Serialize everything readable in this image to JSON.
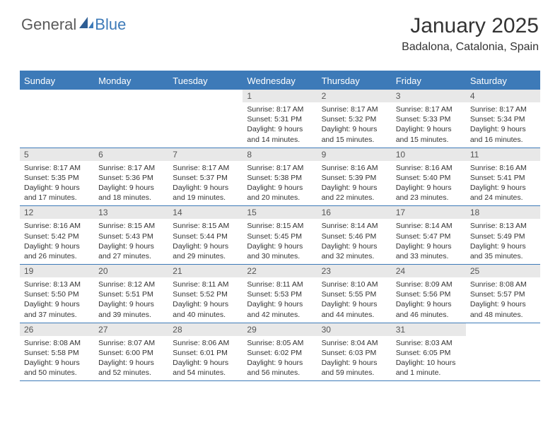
{
  "logo": {
    "word1": "General",
    "word2": "Blue"
  },
  "header": {
    "title": "January 2025",
    "subtitle": "Badalona, Catalonia, Spain"
  },
  "colors": {
    "accent": "#3d7ab8",
    "header_bg": "#3d7ab8",
    "header_text": "#ffffff",
    "daynum_bg": "#e8e8e8",
    "text": "#333333",
    "logo_gray": "#5a5a5a",
    "logo_blue": "#3d7ab8",
    "page_bg": "#ffffff"
  },
  "typography": {
    "title_fontsize": 30,
    "subtitle_fontsize": 16,
    "header_fontsize": 13,
    "daynum_fontsize": 12,
    "body_fontsize": 10.5,
    "font_family": "Arial"
  },
  "calendar": {
    "type": "table",
    "columns": [
      "Sunday",
      "Monday",
      "Tuesday",
      "Wednesday",
      "Thursday",
      "Friday",
      "Saturday"
    ],
    "weeks": [
      [
        {
          "n": "",
          "sr": "",
          "ss": "",
          "dl": ""
        },
        {
          "n": "",
          "sr": "",
          "ss": "",
          "dl": ""
        },
        {
          "n": "",
          "sr": "",
          "ss": "",
          "dl": ""
        },
        {
          "n": "1",
          "sr": "Sunrise: 8:17 AM",
          "ss": "Sunset: 5:31 PM",
          "dl": "Daylight: 9 hours and 14 minutes."
        },
        {
          "n": "2",
          "sr": "Sunrise: 8:17 AM",
          "ss": "Sunset: 5:32 PM",
          "dl": "Daylight: 9 hours and 15 minutes."
        },
        {
          "n": "3",
          "sr": "Sunrise: 8:17 AM",
          "ss": "Sunset: 5:33 PM",
          "dl": "Daylight: 9 hours and 15 minutes."
        },
        {
          "n": "4",
          "sr": "Sunrise: 8:17 AM",
          "ss": "Sunset: 5:34 PM",
          "dl": "Daylight: 9 hours and 16 minutes."
        }
      ],
      [
        {
          "n": "5",
          "sr": "Sunrise: 8:17 AM",
          "ss": "Sunset: 5:35 PM",
          "dl": "Daylight: 9 hours and 17 minutes."
        },
        {
          "n": "6",
          "sr": "Sunrise: 8:17 AM",
          "ss": "Sunset: 5:36 PM",
          "dl": "Daylight: 9 hours and 18 minutes."
        },
        {
          "n": "7",
          "sr": "Sunrise: 8:17 AM",
          "ss": "Sunset: 5:37 PM",
          "dl": "Daylight: 9 hours and 19 minutes."
        },
        {
          "n": "8",
          "sr": "Sunrise: 8:17 AM",
          "ss": "Sunset: 5:38 PM",
          "dl": "Daylight: 9 hours and 20 minutes."
        },
        {
          "n": "9",
          "sr": "Sunrise: 8:16 AM",
          "ss": "Sunset: 5:39 PM",
          "dl": "Daylight: 9 hours and 22 minutes."
        },
        {
          "n": "10",
          "sr": "Sunrise: 8:16 AM",
          "ss": "Sunset: 5:40 PM",
          "dl": "Daylight: 9 hours and 23 minutes."
        },
        {
          "n": "11",
          "sr": "Sunrise: 8:16 AM",
          "ss": "Sunset: 5:41 PM",
          "dl": "Daylight: 9 hours and 24 minutes."
        }
      ],
      [
        {
          "n": "12",
          "sr": "Sunrise: 8:16 AM",
          "ss": "Sunset: 5:42 PM",
          "dl": "Daylight: 9 hours and 26 minutes."
        },
        {
          "n": "13",
          "sr": "Sunrise: 8:15 AM",
          "ss": "Sunset: 5:43 PM",
          "dl": "Daylight: 9 hours and 27 minutes."
        },
        {
          "n": "14",
          "sr": "Sunrise: 8:15 AM",
          "ss": "Sunset: 5:44 PM",
          "dl": "Daylight: 9 hours and 29 minutes."
        },
        {
          "n": "15",
          "sr": "Sunrise: 8:15 AM",
          "ss": "Sunset: 5:45 PM",
          "dl": "Daylight: 9 hours and 30 minutes."
        },
        {
          "n": "16",
          "sr": "Sunrise: 8:14 AM",
          "ss": "Sunset: 5:46 PM",
          "dl": "Daylight: 9 hours and 32 minutes."
        },
        {
          "n": "17",
          "sr": "Sunrise: 8:14 AM",
          "ss": "Sunset: 5:47 PM",
          "dl": "Daylight: 9 hours and 33 minutes."
        },
        {
          "n": "18",
          "sr": "Sunrise: 8:13 AM",
          "ss": "Sunset: 5:49 PM",
          "dl": "Daylight: 9 hours and 35 minutes."
        }
      ],
      [
        {
          "n": "19",
          "sr": "Sunrise: 8:13 AM",
          "ss": "Sunset: 5:50 PM",
          "dl": "Daylight: 9 hours and 37 minutes."
        },
        {
          "n": "20",
          "sr": "Sunrise: 8:12 AM",
          "ss": "Sunset: 5:51 PM",
          "dl": "Daylight: 9 hours and 39 minutes."
        },
        {
          "n": "21",
          "sr": "Sunrise: 8:11 AM",
          "ss": "Sunset: 5:52 PM",
          "dl": "Daylight: 9 hours and 40 minutes."
        },
        {
          "n": "22",
          "sr": "Sunrise: 8:11 AM",
          "ss": "Sunset: 5:53 PM",
          "dl": "Daylight: 9 hours and 42 minutes."
        },
        {
          "n": "23",
          "sr": "Sunrise: 8:10 AM",
          "ss": "Sunset: 5:55 PM",
          "dl": "Daylight: 9 hours and 44 minutes."
        },
        {
          "n": "24",
          "sr": "Sunrise: 8:09 AM",
          "ss": "Sunset: 5:56 PM",
          "dl": "Daylight: 9 hours and 46 minutes."
        },
        {
          "n": "25",
          "sr": "Sunrise: 8:08 AM",
          "ss": "Sunset: 5:57 PM",
          "dl": "Daylight: 9 hours and 48 minutes."
        }
      ],
      [
        {
          "n": "26",
          "sr": "Sunrise: 8:08 AM",
          "ss": "Sunset: 5:58 PM",
          "dl": "Daylight: 9 hours and 50 minutes."
        },
        {
          "n": "27",
          "sr": "Sunrise: 8:07 AM",
          "ss": "Sunset: 6:00 PM",
          "dl": "Daylight: 9 hours and 52 minutes."
        },
        {
          "n": "28",
          "sr": "Sunrise: 8:06 AM",
          "ss": "Sunset: 6:01 PM",
          "dl": "Daylight: 9 hours and 54 minutes."
        },
        {
          "n": "29",
          "sr": "Sunrise: 8:05 AM",
          "ss": "Sunset: 6:02 PM",
          "dl": "Daylight: 9 hours and 56 minutes."
        },
        {
          "n": "30",
          "sr": "Sunrise: 8:04 AM",
          "ss": "Sunset: 6:03 PM",
          "dl": "Daylight: 9 hours and 59 minutes."
        },
        {
          "n": "31",
          "sr": "Sunrise: 8:03 AM",
          "ss": "Sunset: 6:05 PM",
          "dl": "Daylight: 10 hours and 1 minute."
        },
        {
          "n": "",
          "sr": "",
          "ss": "",
          "dl": ""
        }
      ]
    ]
  }
}
